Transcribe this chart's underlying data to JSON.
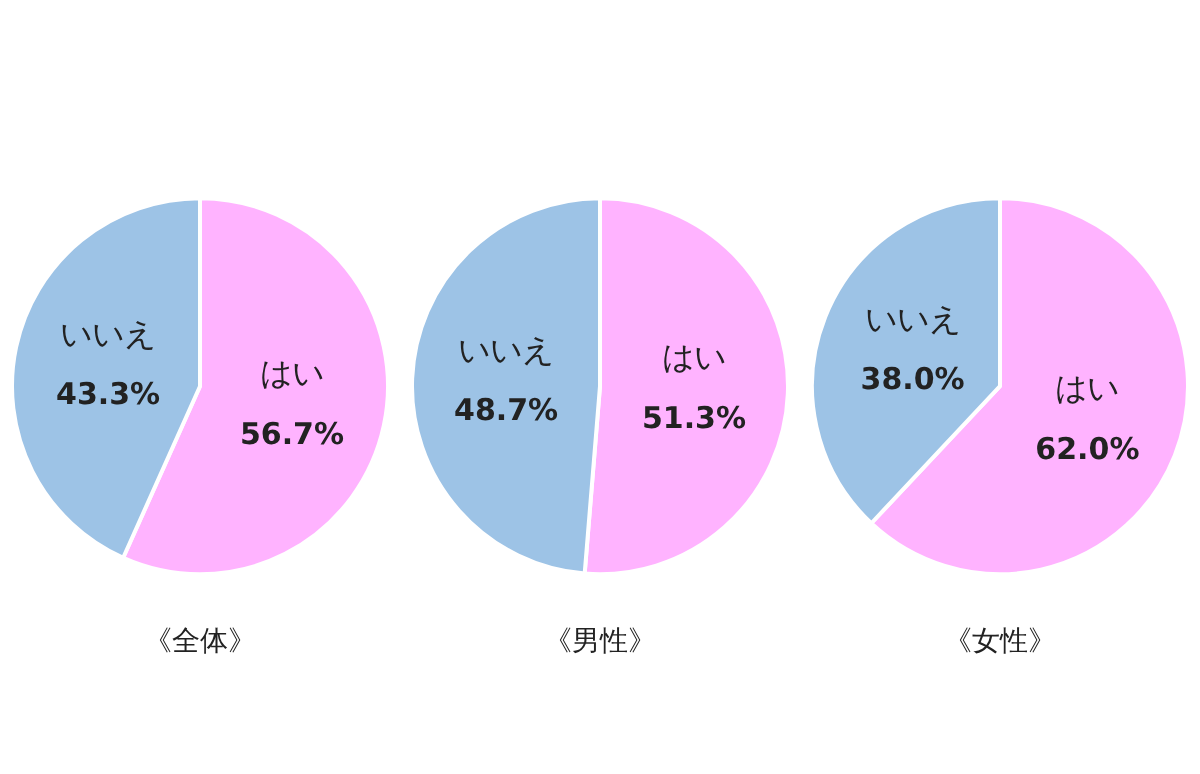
{
  "chart_data": [
    {
      "type": "pie",
      "title": "《全体》",
      "categories": [
        "はい",
        "いいえ"
      ],
      "values": [
        56.7,
        43.3
      ],
      "colors": [
        "#ffb3ff",
        "#9dc3e6"
      ],
      "value_labels": [
        "56.7%",
        "43.3%"
      ]
    },
    {
      "type": "pie",
      "title": "《男性》",
      "categories": [
        "はい",
        "いいえ"
      ],
      "values": [
        51.3,
        48.7
      ],
      "colors": [
        "#ffb3ff",
        "#9dc3e6"
      ],
      "value_labels": [
        "51.3%",
        "48.7%"
      ]
    },
    {
      "type": "pie",
      "title": "《女性》",
      "categories": [
        "はい",
        "いいえ"
      ],
      "values": [
        62.0,
        38.0
      ],
      "colors": [
        "#ffb3ff",
        "#9dc3e6"
      ],
      "value_labels": [
        "62.0%",
        "38.0%"
      ]
    }
  ]
}
